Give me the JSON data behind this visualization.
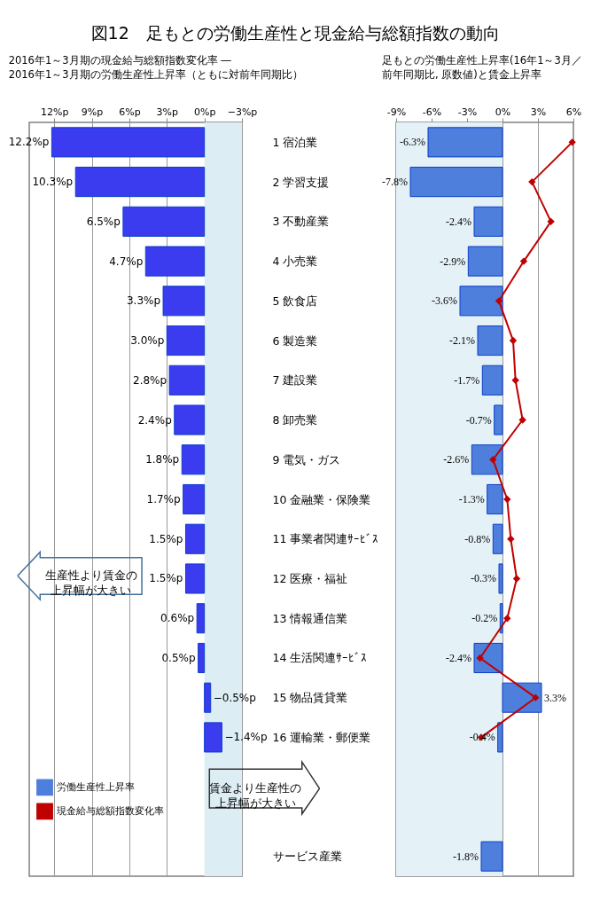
{
  "chart_data": [
    {
      "type": "bar",
      "orientation": "horizontal",
      "title": "図12　足もとの労働生産性と現金給与総額指数の動向",
      "subtitle": "2016年1～3月期の現金給与総額指数変化率 ―\n2016年1～3月期の労働生産性上昇率（ともに対前年同期比）",
      "categories": [
        "1 宿泊業",
        "2 学習支援",
        "3 不動産業",
        "4 小売業",
        "5 飲食店",
        "6 製造業",
        "7 建設業",
        "8 卸売業",
        "9 電気・ガス",
        "10 金融業・保険業",
        "11 事業者関連ｻｰﾋﾞｽ",
        "12 医療・福祉",
        "13 情報通信業",
        "14 生活関連ｻｰﾋﾞｽ",
        "15 物品賃貸業",
        "16 運輸業・郵便業",
        null,
        null,
        "サービス産業"
      ],
      "values": [
        12.2,
        10.3,
        6.5,
        4.7,
        3.3,
        3.0,
        2.8,
        2.4,
        1.8,
        1.7,
        1.5,
        1.5,
        0.6,
        0.5,
        -0.5,
        -1.4,
        null,
        null,
        null
      ],
      "value_labels": [
        "12.2%p",
        "10.3%p",
        "6.5%p",
        "4.7%p",
        "3.3%p",
        "3.0%p",
        "2.8%p",
        "2.4%p",
        "1.8%p",
        "1.7%p",
        "1.5%p",
        "1.5%p",
        "0.6%p",
        "0.5%p",
        "−0.5%p",
        "−1.4%p",
        null,
        null,
        null
      ],
      "color": "#3b3bf0",
      "xlim": [
        14,
        -3
      ],
      "xticks": [
        {
          "value": 12,
          "label": "12%p"
        },
        {
          "value": 9,
          "label": "9%p"
        },
        {
          "value": 6,
          "label": "6%p"
        },
        {
          "value": 3,
          "label": "3%p"
        },
        {
          "value": 0,
          "label": "0%p"
        },
        {
          "value": -3,
          "label": "−3%p"
        }
      ],
      "grid": "x",
      "bands": [
        {
          "axis": "x",
          "from": 0,
          "to": -3,
          "color": "#dcedf4"
        }
      ],
      "annotations": [
        "生産性より賃金の上昇幅が大きい",
        "賃金より生産性の上昇幅が大きい"
      ]
    },
    {
      "type": "bar",
      "orientation": "horizontal",
      "title": "足もとの労働生産性上昇率(16年1～3月／前年同期比, 原数値)と賃金上昇率",
      "categories": [
        null,
        null,
        null,
        null,
        null,
        null,
        null,
        null,
        null,
        null,
        null,
        null,
        null,
        null,
        null,
        null,
        null,
        null,
        null
      ],
      "tick_labels": "x",
      "xlim": [
        -9,
        6
      ],
      "xticks": [
        {
          "value": -9,
          "label": "-9%"
        },
        {
          "value": -6,
          "label": "-6%"
        },
        {
          "value": -3,
          "label": "-3%"
        },
        {
          "value": 0,
          "label": "0%"
        },
        {
          "value": 3,
          "label": "3%"
        },
        {
          "value": 6,
          "label": "6%"
        }
      ],
      "grid": "x",
      "legend": "bottom left",
      "bands": [
        {
          "axis": "x",
          "from": -9,
          "to": 0,
          "color": "#e4f1f7"
        }
      ],
      "series": [
        {
          "name": "労働生産性上昇率",
          "type": "bar",
          "color": "#4f7fdc",
          "values": [
            -6.3,
            -7.8,
            -2.4,
            -2.9,
            -3.6,
            -2.1,
            -1.7,
            -0.7,
            -2.6,
            -1.3,
            -0.8,
            -0.3,
            -0.2,
            -2.4,
            3.3,
            -0.4,
            null,
            null,
            -1.8
          ],
          "value_labels": [
            "-6.3%",
            "-7.8%",
            "-2.4%",
            "-2.9%",
            "-3.6%",
            "-2.1%",
            "-1.7%",
            "-0.7%",
            "-2.6%",
            "-1.3%",
            "-0.8%",
            "-0.3%",
            "-0.2%",
            "-2.4%",
            "3.3%",
            "-0.4%",
            null,
            null,
            "-1.8%"
          ]
        },
        {
          "name": "現金給与総額指数変化率",
          "type": "line",
          "color": "#c00000",
          "marker": "diamond",
          "values": [
            5.9,
            2.5,
            4.1,
            1.8,
            -0.3,
            0.9,
            1.1,
            1.7,
            -0.8,
            0.4,
            0.7,
            1.2,
            0.4,
            -1.9,
            2.8,
            -1.8,
            null,
            null,
            null
          ]
        }
      ]
    }
  ]
}
